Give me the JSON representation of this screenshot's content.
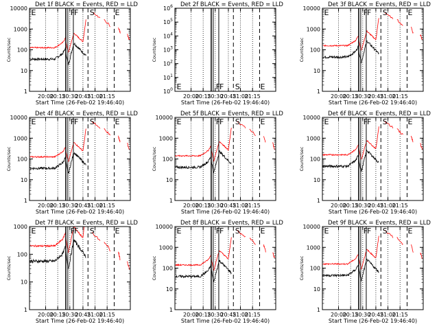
{
  "common": {
    "xlabel": "Start Time (26-Feb-02 19:46:40)",
    "ylabel": "Counts/sec",
    "x_ticks": [
      "20:00",
      "20:15",
      "20:30",
      "20:45",
      "21:00",
      "21:15"
    ],
    "y_ticks_counts": [
      "1",
      "10",
      "100",
      "1000",
      "10000"
    ],
    "y_ticks_exp": [
      {
        "base": "10",
        "exp": "0"
      },
      {
        "base": "10",
        "exp": "1"
      },
      {
        "base": "10",
        "exp": "2"
      },
      {
        "base": "10",
        "exp": "3"
      },
      {
        "base": "10",
        "exp": "4"
      },
      {
        "base": "10",
        "exp": "5"
      },
      {
        "base": "10",
        "exp": "6"
      }
    ],
    "colors": {
      "events": "#000000",
      "lld": "#ff0000"
    }
  },
  "chart_data": [
    {
      "type": "line",
      "title": "Det 1f BLACK = Events, RED = LLD",
      "markers": [
        "E",
        "F",
        "F",
        "S",
        "E"
      ],
      "series": [
        {
          "name": "Events",
          "color": "#000000"
        },
        {
          "name": "LLD",
          "color": "#ff0000"
        }
      ],
      "ylim": [
        1,
        10000
      ],
      "y_scale": "log"
    },
    {
      "type": "line",
      "title": "Det 2f BLACK = Events, RED = LLD",
      "markers": [
        "E",
        "F",
        "F",
        "S",
        "E"
      ],
      "series": [
        {
          "name": "Events",
          "color": "#000000"
        },
        {
          "name": "LLD",
          "color": "#ff0000"
        }
      ],
      "ylim": [
        1,
        1000000
      ],
      "y_scale": "log"
    },
    {
      "type": "line",
      "title": "Det 3f BLACK = Events, RED = LLD",
      "markers": [
        "E",
        "F",
        "F",
        "S",
        "E"
      ],
      "series": [
        {
          "name": "Events",
          "color": "#000000"
        },
        {
          "name": "LLD",
          "color": "#ff0000"
        }
      ],
      "ylim": [
        1,
        10000
      ],
      "y_scale": "log"
    },
    {
      "type": "line",
      "title": "Det 4f BLACK = Events, RED = LLD",
      "markers": [
        "E",
        "F",
        "F",
        "S",
        "E"
      ],
      "series": [
        {
          "name": "Events",
          "color": "#000000"
        },
        {
          "name": "LLD",
          "color": "#ff0000"
        }
      ],
      "ylim": [
        1,
        10000
      ],
      "y_scale": "log"
    },
    {
      "type": "line",
      "title": "Det 5f BLACK = Events, RED = LLD",
      "markers": [
        "E",
        "F",
        "F",
        "S",
        "E"
      ],
      "series": [
        {
          "name": "Events",
          "color": "#000000"
        },
        {
          "name": "LLD",
          "color": "#ff0000"
        }
      ],
      "ylim": [
        1,
        10000
      ],
      "y_scale": "log"
    },
    {
      "type": "line",
      "title": "Det 6f BLACK = Events, RED = LLD",
      "markers": [
        "E",
        "F",
        "F",
        "S",
        "E"
      ],
      "series": [
        {
          "name": "Events",
          "color": "#000000"
        },
        {
          "name": "LLD",
          "color": "#ff0000"
        }
      ],
      "ylim": [
        1,
        10000
      ],
      "y_scale": "log"
    },
    {
      "type": "line",
      "title": "Det 7f BLACK = Events, RED = LLD",
      "markers": [
        "E",
        "F",
        "F",
        "S",
        "E"
      ],
      "series": [
        {
          "name": "Events",
          "color": "#000000"
        },
        {
          "name": "LLD",
          "color": "#ff0000"
        }
      ],
      "ylim": [
        1,
        1000
      ],
      "y_scale": "log"
    },
    {
      "type": "line",
      "title": "Det 8f BLACK = Events, RED = LLD",
      "markers": [
        "E",
        "F",
        "F",
        "S",
        "E"
      ],
      "series": [
        {
          "name": "Events",
          "color": "#000000"
        },
        {
          "name": "LLD",
          "color": "#ff0000"
        }
      ],
      "ylim": [
        1,
        10000
      ],
      "y_scale": "log"
    },
    {
      "type": "line",
      "title": "Det 9f BLACK = Events, RED = LLD",
      "markers": [
        "E",
        "F",
        "F",
        "S",
        "E"
      ],
      "series": [
        {
          "name": "Events",
          "color": "#000000"
        },
        {
          "name": "LLD",
          "color": "#ff0000"
        }
      ],
      "ylim": [
        1,
        10000
      ],
      "y_scale": "log"
    }
  ]
}
